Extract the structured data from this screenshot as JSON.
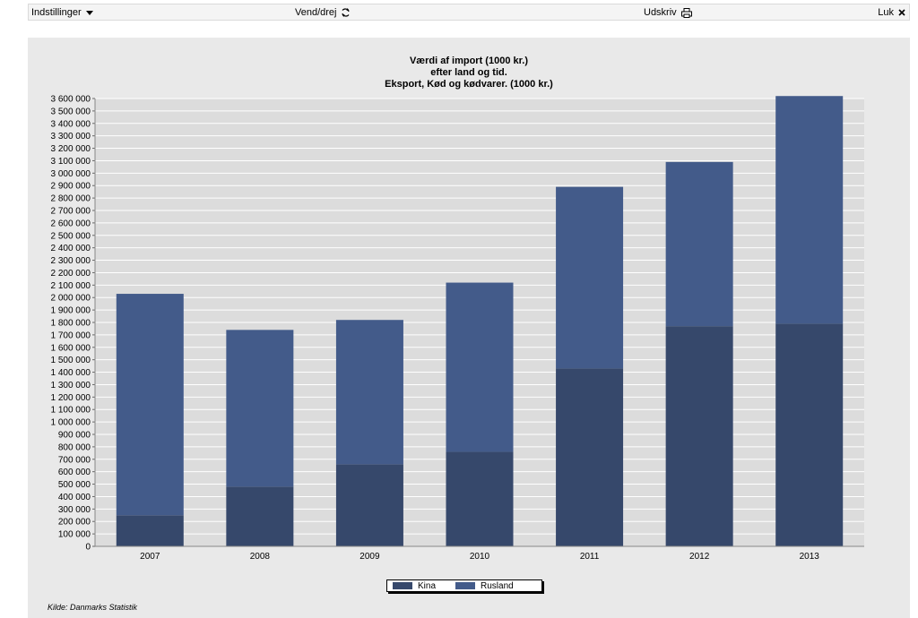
{
  "toolbar": {
    "settings_label": "Indstillinger",
    "rotate_label": "Vend/drej",
    "print_label": "Udskriv",
    "close_label": "Luk"
  },
  "icons": {
    "settings": "caret-down-icon",
    "rotate": "refresh-icon",
    "print": "printer-icon",
    "close": "close-icon"
  },
  "colors": {
    "kina": "#36486b",
    "rusland": "#435b8a",
    "plot_background": "#dcdcdc",
    "panel_background": "#e9e9e9"
  },
  "chart_data": {
    "type": "bar",
    "stacked": true,
    "title": [
      "Værdi af import (1000 kr.)",
      "efter land og tid.",
      "Eksport, Kød og kødvarer. (1000 kr.)"
    ],
    "categories": [
      "2007",
      "2008",
      "2009",
      "2010",
      "2011",
      "2012",
      "2013"
    ],
    "series": [
      {
        "name": "Kina",
        "values": [
          250000,
          480000,
          660000,
          760000,
          1430000,
          1770000,
          1790000
        ]
      },
      {
        "name": "Rusland",
        "values": [
          1780000,
          1260000,
          1160000,
          1360000,
          1460000,
          1320000,
          1830000
        ]
      }
    ],
    "ylim": [
      0,
      3600000
    ],
    "ytick_step": 100000,
    "ytick_labels": [
      "0",
      "100 000",
      "200 000",
      "300 000",
      "400 000",
      "500 000",
      "600 000",
      "700 000",
      "800 000",
      "900 000",
      "1 000 000",
      "1 100 000",
      "1 200 000",
      "1 300 000",
      "1 400 000",
      "1 500 000",
      "1 600 000",
      "1 700 000",
      "1 800 000",
      "1 900 000",
      "2 000 000",
      "2 100 000",
      "2 200 000",
      "2 300 000",
      "2 400 000",
      "2 500 000",
      "2 600 000",
      "2 700 000",
      "2 800 000",
      "2 900 000",
      "3 000 000",
      "3 100 000",
      "3 200 000",
      "3 300 000",
      "3 400 000",
      "3 500 000",
      "3 600 000"
    ],
    "grid": true,
    "legend_position": "bottom-center",
    "source": "Kilde: Danmarks Statistik"
  }
}
